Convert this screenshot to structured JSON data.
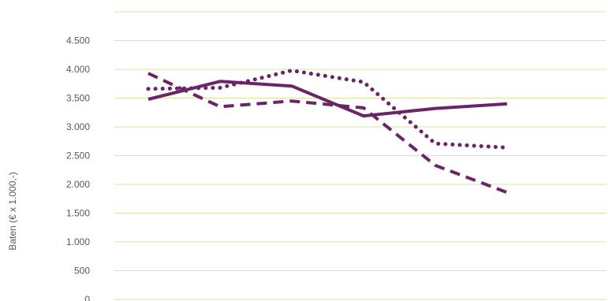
{
  "chart_data": {
    "type": "line",
    "title": "",
    "xlabel": "",
    "ylabel": "Baten (€ x 1.000,-)",
    "ylim": [
      0,
      5000
    ],
    "yticks": [
      {
        "value": 0,
        "label": "0"
      },
      {
        "value": 500,
        "label": "500"
      },
      {
        "value": 1000,
        "label": "1.000"
      },
      {
        "value": 1500,
        "label": "1.500"
      },
      {
        "value": 2000,
        "label": "2.000"
      },
      {
        "value": 2500,
        "label": "2.500"
      },
      {
        "value": 3000,
        "label": "3.000"
      },
      {
        "value": 3500,
        "label": "3.500"
      },
      {
        "value": 4000,
        "label": "4.000"
      },
      {
        "value": 4500,
        "label": "4.500"
      },
      {
        "value": 5000,
        "label": ""
      }
    ],
    "grid": true,
    "x": [
      1,
      2,
      3,
      4,
      5,
      6
    ],
    "series": [
      {
        "style": "solid",
        "color": "#6b2466",
        "values": [
          3480,
          3790,
          3710,
          3190,
          3320,
          3400
        ]
      },
      {
        "style": "dashed",
        "color": "#6b2466",
        "values": [
          3930,
          3350,
          3450,
          3330,
          2330,
          1860
        ]
      },
      {
        "style": "dotted",
        "color": "#6b2466",
        "values": [
          3660,
          3680,
          3980,
          3780,
          2710,
          2640
        ]
      }
    ],
    "gridColor": "#d7e4a3"
  }
}
